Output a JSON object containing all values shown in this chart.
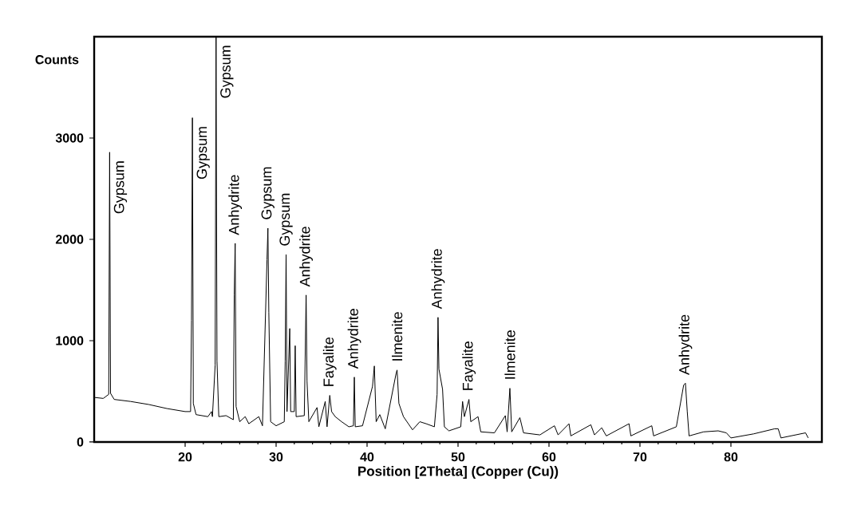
{
  "chart_data": {
    "type": "line",
    "xlabel": "Position [2Theta] (Copper (Cu))",
    "ylabel": "Counts",
    "xlim": [
      10,
      90
    ],
    "ylim": [
      0,
      4000
    ],
    "xticks": [
      20,
      30,
      40,
      50,
      60,
      70,
      80
    ],
    "yticks": [
      0,
      1000,
      2000,
      3000
    ],
    "series": [
      {
        "color": "#000000",
        "x": [
          10,
          11.0,
          11.6,
          11.7,
          11.8,
          12.2,
          14,
          16,
          18,
          20,
          20.6,
          20.7,
          20.8,
          20.9,
          21.2,
          22.5,
          22.9,
          23.0,
          23.3,
          23.4,
          23.5,
          23.7,
          24.5,
          25.3,
          25.4,
          25.5,
          25.6,
          26,
          26.6,
          27,
          28.1,
          28.5,
          29.0,
          29.1,
          29.2,
          29.4,
          30,
          30.9,
          31.0,
          31.1,
          31.2,
          31.5,
          31.6,
          32.0,
          32.1,
          32.2,
          33.1,
          33.3,
          33.4,
          33.6,
          34.5,
          34.7,
          35.4,
          35.6,
          35.9,
          36.1,
          36.5,
          37.2,
          38,
          38.5,
          38.6,
          38.7,
          39.5,
          40.6,
          40.8,
          41,
          41.4,
          42,
          43.2,
          43.3,
          43.5,
          44,
          45,
          45.8,
          46.5,
          47.4,
          47.7,
          47.8,
          47.9,
          48.3,
          48.5,
          49,
          50.3,
          50.5,
          50.7,
          51.2,
          51.4,
          52.2,
          52.5,
          54,
          55.2,
          55.4,
          55.7,
          55.9,
          56.8,
          57.2,
          59,
          60.6,
          61,
          62.2,
          62.4,
          64.6,
          65,
          65.8,
          66.3,
          68.8,
          69,
          71.3,
          71.5,
          74,
          74.8,
          75,
          75.2,
          75.4,
          77,
          78.6,
          79.5,
          80,
          82.5,
          84.8,
          85.2,
          85.5,
          88.2,
          88.5
        ],
        "values": [
          440,
          430,
          470,
          2860,
          480,
          420,
          400,
          370,
          330,
          300,
          300,
          1200,
          3200,
          380,
          270,
          250,
          300,
          250,
          760,
          4000,
          800,
          250,
          260,
          220,
          1450,
          1960,
          350,
          200,
          250,
          180,
          250,
          160,
          1800,
          2110,
          1280,
          200,
          160,
          200,
          800,
          1850,
          300,
          1120,
          300,
          300,
          950,
          250,
          260,
          1450,
          600,
          200,
          340,
          150,
          400,
          150,
          460,
          300,
          250,
          200,
          150,
          160,
          640,
          150,
          160,
          550,
          750,
          200,
          270,
          130,
          680,
          710,
          380,
          250,
          120,
          200,
          180,
          150,
          470,
          1230,
          720,
          520,
          150,
          110,
          150,
          400,
          250,
          420,
          200,
          250,
          100,
          90,
          260,
          100,
          530,
          100,
          240,
          90,
          70,
          160,
          70,
          180,
          60,
          170,
          70,
          140,
          60,
          180,
          60,
          160,
          60,
          150,
          560,
          580,
          300,
          60,
          100,
          110,
          90,
          40,
          80,
          130,
          130,
          40,
          90,
          40
        ]
      }
    ],
    "annotations": [
      {
        "text": "Gypsum",
        "x": 11.7,
        "y": 2860
      },
      {
        "text": "Gypsum",
        "x": 20.8,
        "y": 3200
      },
      {
        "text": "Gypsum",
        "x": 23.4,
        "y": 4000
      },
      {
        "text": "Anhydrite",
        "x": 25.5,
        "y": 1960
      },
      {
        "text": "Gypsum",
        "x": 29.1,
        "y": 2110
      },
      {
        "text": "Gypsum",
        "x": 31.1,
        "y": 1850
      },
      {
        "text": "Anhydrite",
        "x": 33.3,
        "y": 1450
      },
      {
        "text": "Fayalite",
        "x": 35.9,
        "y": 460
      },
      {
        "text": "Anhydrite",
        "x": 38.6,
        "y": 640
      },
      {
        "text": "Ilmenite",
        "x": 43.3,
        "y": 710
      },
      {
        "text": "Anhydrite",
        "x": 47.8,
        "y": 1230
      },
      {
        "text": "Fayalite",
        "x": 51.2,
        "y": 420
      },
      {
        "text": "Ilmenite",
        "x": 55.7,
        "y": 530
      },
      {
        "text": "Anhydrite",
        "x": 75.0,
        "y": 580
      }
    ]
  }
}
